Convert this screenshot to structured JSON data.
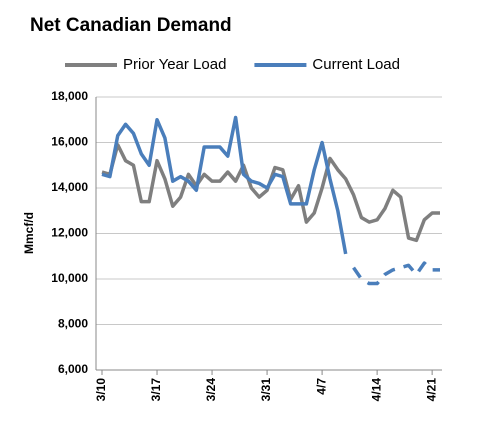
{
  "chart_data": {
    "type": "line",
    "title": "Net Canadian Demand",
    "y_label": "Mmcf/d",
    "categories": [
      "3/10",
      null,
      null,
      null,
      null,
      null,
      null,
      "3/17",
      null,
      null,
      null,
      null,
      null,
      null,
      "3/24",
      null,
      null,
      null,
      null,
      null,
      null,
      "3/31",
      null,
      null,
      null,
      null,
      null,
      null,
      "4/7",
      null,
      null,
      null,
      null,
      null,
      null,
      "4/14",
      null,
      null,
      null,
      null,
      null,
      null,
      "4/21",
      null
    ],
    "series": [
      {
        "name": "Prior Year Load",
        "color": "#7f7f7f",
        "values": [
          14700,
          14600,
          15900,
          15200,
          15000,
          13400,
          13400,
          15200,
          14400,
          13200,
          13600,
          14600,
          14100,
          14600,
          14300,
          14300,
          14700,
          14300,
          15000,
          14000,
          13600,
          13900,
          14900,
          14800,
          13500,
          14100,
          12500,
          12900,
          14000,
          15300,
          14800,
          14400,
          13700,
          12700,
          12500,
          12600,
          13100,
          13900,
          13600,
          11800,
          11700,
          12600,
          12900,
          12900
        ]
      },
      {
        "name": "Current Load",
        "color": "#4a7ebb",
        "dash_start": 31,
        "values": [
          14600,
          14500,
          16300,
          16800,
          16400,
          15500,
          15000,
          17000,
          16200,
          14300,
          14500,
          14300,
          13900,
          15800,
          15800,
          15800,
          15400,
          17100,
          14600,
          14300,
          14200,
          14000,
          14600,
          14500,
          13300,
          13300,
          13300,
          14800,
          16000,
          14400,
          13000,
          11100,
          10500,
          10000,
          9800,
          9800,
          10200,
          10400,
          10500,
          10600,
          10200,
          10700,
          10400,
          10400
        ]
      }
    ],
    "ylim": [
      6000,
      18000
    ],
    "yticks": [
      {
        "value": 6000,
        "label": "6,000"
      },
      {
        "value": 8000,
        "label": "8,000"
      },
      {
        "value": 10000,
        "label": "10,000"
      },
      {
        "value": 12000,
        "label": "12,000"
      },
      {
        "value": 14000,
        "label": "14,000"
      },
      {
        "value": 16000,
        "label": "16,000"
      },
      {
        "value": 18000,
        "label": "18,000"
      }
    ],
    "grid": true,
    "legend": "top"
  }
}
